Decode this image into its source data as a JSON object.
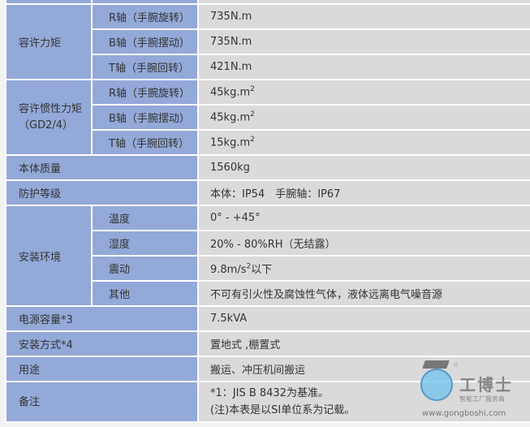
{
  "rows": {
    "moment": {
      "label": "容许力矩",
      "items": [
        {
          "axis": "R轴（手腕旋转）",
          "value": "735N.m"
        },
        {
          "axis": "B轴（手腕摆动）",
          "value": "735N.m"
        },
        {
          "axis": "T轴（手腕回转）",
          "value": "421N.m"
        }
      ]
    },
    "inertia": {
      "label": "容许惯性力矩",
      "label2": "（GD2/4）",
      "items": [
        {
          "axis": "R轴（手腕旋转）",
          "value": "45kg.m",
          "sup": "2"
        },
        {
          "axis": "B轴（手腕摆动）",
          "value": "45kg.m",
          "sup": "2"
        },
        {
          "axis": "T轴（手腕回转）",
          "value": "15kg.m",
          "sup": "2"
        }
      ]
    },
    "mass": {
      "label": "本体质量",
      "value": "1560kg"
    },
    "protection": {
      "label": "防护等级",
      "value": "本体：IP54　手腕轴：IP67"
    },
    "environment": {
      "label": "安装环境",
      "items": [
        {
          "name": "温度",
          "value": "0° - +45°"
        },
        {
          "name": "湿度",
          "value": "20% - 80%RH（无结露）"
        },
        {
          "name": "震动",
          "value": "9.8m/s",
          "sup": "2",
          "suffix": "以下"
        },
        {
          "name": "其他",
          "value": "不可有引火性及腐蚀性气体，液体远离电气噪音源"
        }
      ]
    },
    "power": {
      "label": "电源容量*3",
      "value": "7.5kVA"
    },
    "mounting": {
      "label": "安装方式*4",
      "value": "置地式 ,棚置式"
    },
    "usage": {
      "label": "用途",
      "value": "搬运、冲压机间搬运"
    },
    "notes": {
      "label": "备注",
      "line1": "*1：JIS B 8432为基准。",
      "line2": "(注)本表是以SI单位系为记载。"
    }
  },
  "watermark": {
    "brand": "工博士",
    "subtitle": "智能工厂服务商",
    "url": "www.gongboshi.com",
    "reg": "®"
  }
}
